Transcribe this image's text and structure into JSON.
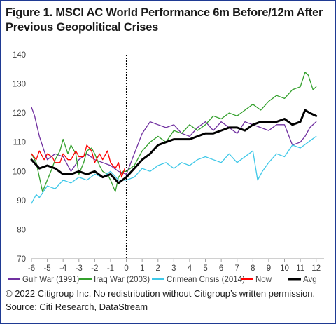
{
  "figure": {
    "title": "Figure 1. MSCI AC World Performance 6m Before/12m After Previous Geopolitical Crises",
    "copyright": "© 2022 Citigroup Inc. No redistribution without Citigroup’s written permission.",
    "source": "Source: Citi Research, DataStream"
  },
  "chart_data": {
    "type": "line",
    "title": "Figure 1. MSCI AC World Performance 6m Before/12m After Previous Geopolitical Crises",
    "xlabel": "",
    "ylabel": "",
    "xlim": [
      -6,
      12.5
    ],
    "ylim": [
      70,
      140
    ],
    "x_ticks": [
      -6,
      -5,
      -4,
      -3,
      -2,
      -1,
      0,
      1,
      2,
      3,
      4,
      5,
      6,
      7,
      8,
      9,
      10,
      11,
      12
    ],
    "x_tick_labels": [
      "-6",
      "-5",
      "-4",
      "-3",
      "-2",
      "-1",
      "0",
      "1",
      "2",
      "3",
      "4",
      "5",
      "6",
      "7",
      "8",
      "9",
      "10",
      "11",
      "12"
    ],
    "y_ticks": [
      70,
      80,
      90,
      100,
      110,
      120,
      130,
      140
    ],
    "grid": false,
    "vertical_marker": {
      "x": 0,
      "style": "dotted",
      "color": "#000000"
    },
    "legend_position": "bottom",
    "series": [
      {
        "name": "Gulf War (1991)",
        "color": "#7030a0",
        "x": [
          -6,
          -5.8,
          -5.5,
          -5.2,
          -5,
          -4.5,
          -4,
          -3.5,
          -3,
          -2.5,
          -2,
          -1.5,
          -1,
          -0.5,
          0,
          0.5,
          1,
          1.5,
          2,
          2.5,
          3,
          3.5,
          4,
          4.5,
          5,
          5.5,
          6,
          6.5,
          7,
          7.5,
          8,
          8.5,
          9,
          9.5,
          10,
          10.5,
          11,
          11.3,
          11.6,
          12
        ],
        "values": [
          122,
          119,
          112,
          107,
          104,
          106,
          105,
          100,
          104,
          106,
          104,
          103,
          102,
          100,
          99,
          106,
          113,
          117,
          116,
          115,
          116,
          113,
          112,
          115,
          117,
          114,
          117,
          115,
          113,
          117,
          116,
          115,
          114,
          116,
          116,
          109,
          110,
          112,
          115,
          117
        ]
      },
      {
        "name": "Iraq War (2003)",
        "color": "#33a02c",
        "x": [
          -6,
          -5.7,
          -5.5,
          -5.3,
          -5,
          -4.7,
          -4.5,
          -4.2,
          -4,
          -3.7,
          -3.5,
          -3.2,
          -3,
          -2.7,
          -2.5,
          -2.2,
          -2,
          -1.7,
          -1.5,
          -1.2,
          -1,
          -0.7,
          -0.5,
          -0.2,
          0,
          0.5,
          1,
          1.5,
          2,
          2.5,
          3,
          3.5,
          4,
          4.5,
          5,
          5.5,
          6,
          6.5,
          7,
          7.5,
          8,
          8.5,
          9,
          9.5,
          10,
          10.5,
          11,
          11.3,
          11.5,
          11.8,
          12
        ],
        "values": [
          106,
          103,
          98,
          93,
          97,
          101,
          104,
          107,
          111,
          106,
          109,
          106,
          99,
          103,
          107,
          108,
          106,
          102,
          100,
          99,
          97,
          93,
          98,
          100,
          100,
          102,
          107,
          110,
          112,
          110,
          114,
          113,
          116,
          114,
          116,
          119,
          118,
          120,
          119,
          121,
          123,
          121,
          124,
          126,
          125,
          128,
          129,
          134,
          133,
          128,
          129
        ]
      },
      {
        "name": "Crimean Crisis (2014)",
        "color": "#3fc8e8",
        "x": [
          -6,
          -5.7,
          -5.5,
          -5,
          -4.5,
          -4,
          -3.5,
          -3,
          -2.5,
          -2,
          -1.5,
          -1,
          -0.5,
          0,
          0.5,
          1,
          1.5,
          2,
          2.5,
          3,
          3.5,
          4,
          4.5,
          5,
          5.5,
          6,
          6.5,
          7,
          7.5,
          8,
          8.3,
          8.6,
          9,
          9.5,
          10,
          10.5,
          11,
          11.5,
          12
        ],
        "values": [
          89,
          92,
          91,
          95,
          94,
          97,
          96,
          98,
          97,
          99,
          98,
          100,
          97,
          97,
          98,
          101,
          100,
          102,
          103,
          101,
          103,
          102,
          104,
          105,
          104,
          103,
          106,
          103,
          105,
          107,
          97,
          100,
          103,
          106,
          105,
          109,
          108,
          110,
          112
        ]
      },
      {
        "name": "Now",
        "color": "#ff0000",
        "x": [
          -6,
          -5.7,
          -5.5,
          -5.2,
          -5,
          -4.7,
          -4.5,
          -4.2,
          -4,
          -3.7,
          -3.5,
          -3.2,
          -3,
          -2.7,
          -2.5,
          -2.2,
          -2,
          -1.7,
          -1.5,
          -1.2,
          -1,
          -0.7,
          -0.5,
          -0.3,
          -0.1
        ],
        "values": [
          106,
          104,
          107,
          104,
          106,
          105,
          103,
          103,
          106,
          104,
          104,
          107,
          105,
          105,
          109,
          107,
          103,
          106,
          104,
          107,
          103,
          101,
          103,
          98,
          101
        ]
      },
      {
        "name": "Avg",
        "color": "#000000",
        "line_width": 3,
        "x": [
          -6,
          -5.5,
          -5,
          -4.5,
          -4,
          -3.5,
          -3,
          -2.5,
          -2,
          -1.5,
          -1,
          -0.5,
          0,
          0.5,
          1,
          1.5,
          2,
          2.5,
          3,
          3.5,
          4,
          4.5,
          5,
          5.5,
          6,
          6.5,
          7,
          7.5,
          8,
          8.5,
          9,
          9.5,
          10,
          10.5,
          11,
          11.3,
          11.6,
          12
        ],
        "values": [
          104,
          101,
          102,
          101,
          99,
          99,
          100,
          99,
          100,
          98,
          99,
          96,
          98,
          101,
          104,
          106,
          109,
          110,
          111,
          111,
          111,
          112,
          113,
          113,
          114,
          115,
          115,
          114,
          116,
          117,
          117,
          117,
          118,
          116,
          117,
          121,
          120,
          119
        ]
      }
    ]
  }
}
